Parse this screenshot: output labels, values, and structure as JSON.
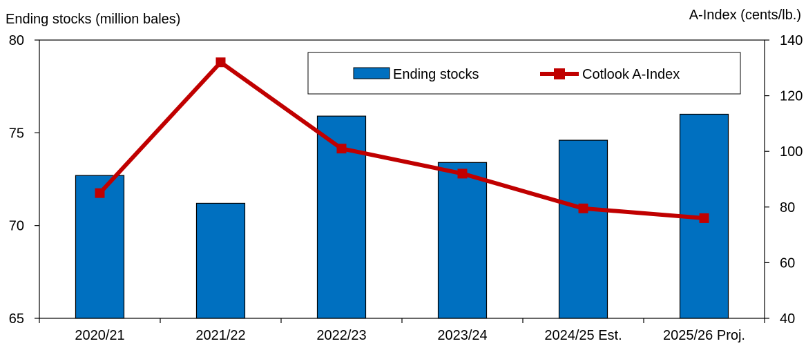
{
  "chart_data": {
    "type": "bar",
    "categories": [
      "2020/21",
      "2021/22",
      "2022/23",
      "2023/24",
      "2024/25 Est.",
      "2025/26 Proj."
    ],
    "series": [
      {
        "name": "Ending stocks",
        "kind": "bar",
        "axis": "left",
        "color": "#0070C0",
        "values": [
          72.7,
          71.2,
          75.9,
          73.4,
          74.6,
          76.0
        ]
      },
      {
        "name": "Cotlook A-Index",
        "kind": "line",
        "axis": "right",
        "color": "#C00000",
        "marker": "square",
        "values": [
          85,
          132,
          101,
          92,
          79.5,
          76
        ]
      }
    ],
    "ylabel": "Ending stocks (million bales)",
    "y2label": "A-Index (cents/lb.)",
    "ylim": [
      65,
      80
    ],
    "y2lim": [
      40,
      140
    ],
    "yticks": [
      "65",
      "70",
      "75",
      "80"
    ],
    "y2ticks": [
      "40",
      "60",
      "80",
      "100",
      "120",
      "140"
    ],
    "grid": false,
    "legend_position": "top-right"
  }
}
